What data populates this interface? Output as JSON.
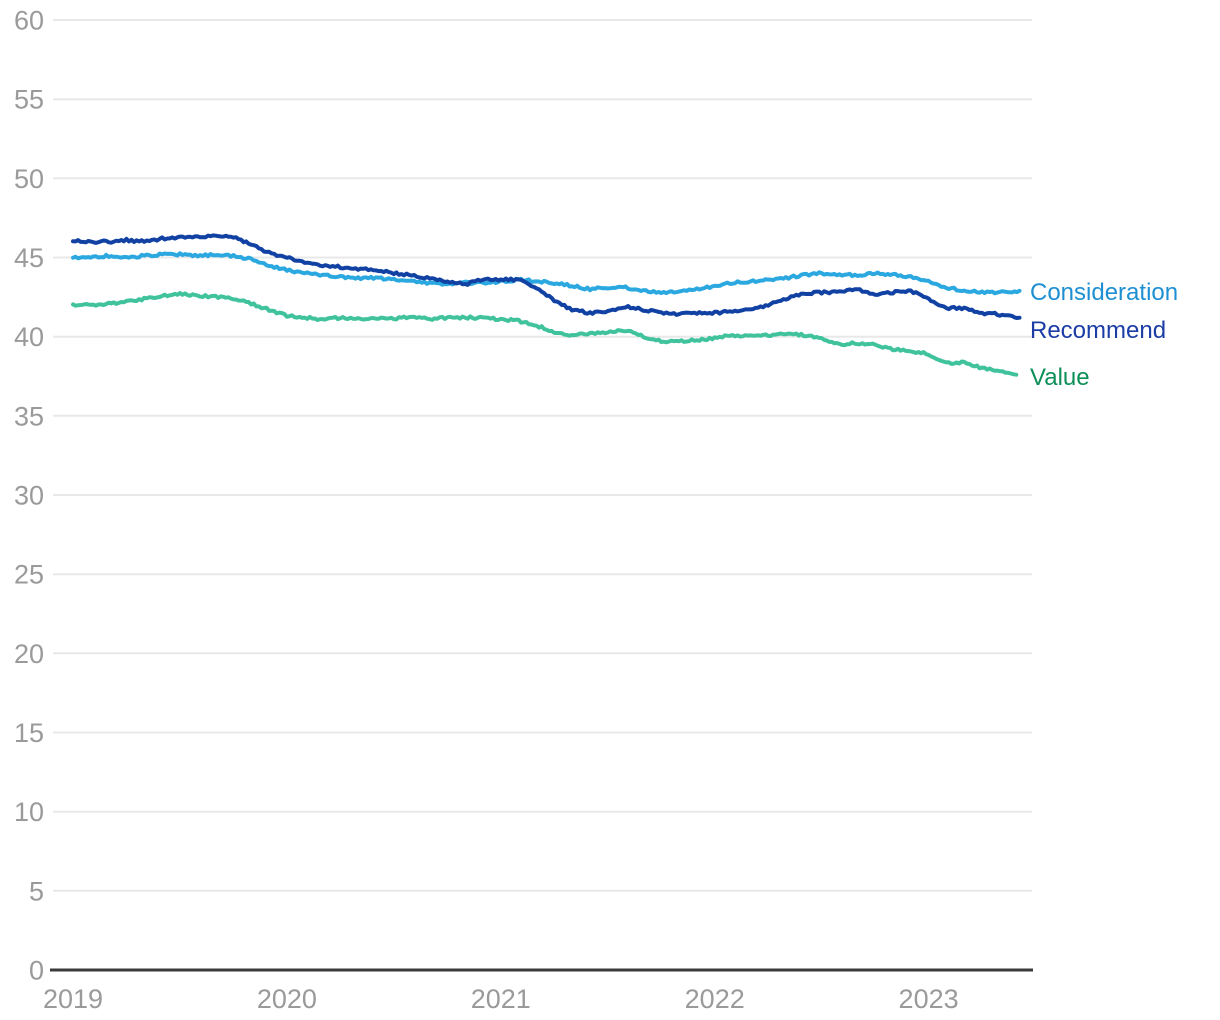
{
  "colors": {
    "axis_line": "#3a3a3a",
    "grid_line": "#e8e8e8",
    "tick_label": "#9a9a9a"
  },
  "chart_data": {
    "type": "line",
    "title": "",
    "xlabel": "",
    "ylabel": "",
    "ylim": [
      0,
      60
    ],
    "xlim": [
      2019.0,
      2023.45
    ],
    "grid": "horizontal",
    "legend_position": "right-of-line-ends",
    "yticks": [
      0,
      5,
      10,
      15,
      20,
      25,
      30,
      35,
      40,
      45,
      50,
      55,
      60
    ],
    "xticks": [
      2019,
      2020,
      2021,
      2022,
      2023
    ],
    "series": [
      {
        "name": "Consideration",
        "line_color": "#2ba8e0",
        "label_color": "#1e8fd2",
        "points": [
          [
            2019.0,
            45.0
          ],
          [
            2019.083,
            45.0
          ],
          [
            2019.167,
            45.1
          ],
          [
            2019.25,
            45.0
          ],
          [
            2019.333,
            45.1
          ],
          [
            2019.417,
            45.2
          ],
          [
            2019.5,
            45.2
          ],
          [
            2019.583,
            45.1
          ],
          [
            2019.667,
            45.2
          ],
          [
            2019.75,
            45.1
          ],
          [
            2019.833,
            44.9
          ],
          [
            2019.917,
            44.5
          ],
          [
            2020.0,
            44.2
          ],
          [
            2020.083,
            44.0
          ],
          [
            2020.167,
            43.9
          ],
          [
            2020.25,
            43.8
          ],
          [
            2020.333,
            43.7
          ],
          [
            2020.417,
            43.7
          ],
          [
            2020.5,
            43.6
          ],
          [
            2020.583,
            43.5
          ],
          [
            2020.667,
            43.4
          ],
          [
            2020.75,
            43.3
          ],
          [
            2020.833,
            43.4
          ],
          [
            2020.917,
            43.4
          ],
          [
            2021.0,
            43.5
          ],
          [
            2021.083,
            43.6
          ],
          [
            2021.167,
            43.5
          ],
          [
            2021.25,
            43.4
          ],
          [
            2021.333,
            43.2
          ],
          [
            2021.417,
            43.0
          ],
          [
            2021.5,
            43.1
          ],
          [
            2021.583,
            43.1
          ],
          [
            2021.667,
            42.9
          ],
          [
            2021.75,
            42.8
          ],
          [
            2021.833,
            42.8
          ],
          [
            2021.917,
            43.0
          ],
          [
            2022.0,
            43.2
          ],
          [
            2022.083,
            43.4
          ],
          [
            2022.167,
            43.5
          ],
          [
            2022.25,
            43.6
          ],
          [
            2022.333,
            43.7
          ],
          [
            2022.417,
            43.9
          ],
          [
            2022.5,
            44.0
          ],
          [
            2022.583,
            43.9
          ],
          [
            2022.667,
            43.9
          ],
          [
            2022.75,
            44.0
          ],
          [
            2022.833,
            43.9
          ],
          [
            2022.917,
            43.8
          ],
          [
            2023.0,
            43.5
          ],
          [
            2023.083,
            43.1
          ],
          [
            2023.167,
            42.9
          ],
          [
            2023.25,
            42.8
          ],
          [
            2023.333,
            42.8
          ],
          [
            2023.425,
            42.9
          ]
        ]
      },
      {
        "name": "Recommend",
        "line_color": "#1141a3",
        "label_color": "#1c3ca6",
        "points": [
          [
            2019.0,
            46.1
          ],
          [
            2019.083,
            46.0
          ],
          [
            2019.167,
            46.0
          ],
          [
            2019.25,
            46.1
          ],
          [
            2019.333,
            46.0
          ],
          [
            2019.417,
            46.2
          ],
          [
            2019.5,
            46.3
          ],
          [
            2019.583,
            46.3
          ],
          [
            2019.667,
            46.4
          ],
          [
            2019.75,
            46.3
          ],
          [
            2019.833,
            45.8
          ],
          [
            2019.917,
            45.3
          ],
          [
            2020.0,
            45.0
          ],
          [
            2020.083,
            44.7
          ],
          [
            2020.167,
            44.5
          ],
          [
            2020.25,
            44.4
          ],
          [
            2020.333,
            44.3
          ],
          [
            2020.417,
            44.2
          ],
          [
            2020.5,
            44.0
          ],
          [
            2020.583,
            43.9
          ],
          [
            2020.667,
            43.7
          ],
          [
            2020.75,
            43.5
          ],
          [
            2020.833,
            43.3
          ],
          [
            2020.917,
            43.6
          ],
          [
            2021.0,
            43.6
          ],
          [
            2021.083,
            43.6
          ],
          [
            2021.167,
            43.1
          ],
          [
            2021.25,
            42.3
          ],
          [
            2021.333,
            41.7
          ],
          [
            2021.417,
            41.5
          ],
          [
            2021.5,
            41.6
          ],
          [
            2021.583,
            41.9
          ],
          [
            2021.667,
            41.7
          ],
          [
            2021.75,
            41.5
          ],
          [
            2021.833,
            41.4
          ],
          [
            2021.917,
            41.5
          ],
          [
            2022.0,
            41.5
          ],
          [
            2022.083,
            41.6
          ],
          [
            2022.167,
            41.7
          ],
          [
            2022.25,
            42.0
          ],
          [
            2022.333,
            42.4
          ],
          [
            2022.417,
            42.7
          ],
          [
            2022.5,
            42.8
          ],
          [
            2022.583,
            42.8
          ],
          [
            2022.667,
            43.0
          ],
          [
            2022.75,
            42.6
          ],
          [
            2022.833,
            42.8
          ],
          [
            2022.917,
            42.9
          ],
          [
            2023.0,
            42.4
          ],
          [
            2023.083,
            41.8
          ],
          [
            2023.167,
            41.8
          ],
          [
            2023.25,
            41.5
          ],
          [
            2023.333,
            41.4
          ],
          [
            2023.425,
            41.2
          ]
        ]
      },
      {
        "name": "Value",
        "line_color": "#40c39d",
        "label_color": "#0d8f58",
        "points": [
          [
            2019.0,
            42.0
          ],
          [
            2019.083,
            42.0
          ],
          [
            2019.167,
            42.1
          ],
          [
            2019.25,
            42.2
          ],
          [
            2019.333,
            42.4
          ],
          [
            2019.417,
            42.6
          ],
          [
            2019.5,
            42.7
          ],
          [
            2019.583,
            42.6
          ],
          [
            2019.667,
            42.5
          ],
          [
            2019.75,
            42.4
          ],
          [
            2019.833,
            42.1
          ],
          [
            2019.917,
            41.7
          ],
          [
            2020.0,
            41.3
          ],
          [
            2020.083,
            41.2
          ],
          [
            2020.167,
            41.1
          ],
          [
            2020.25,
            41.2
          ],
          [
            2020.333,
            41.1
          ],
          [
            2020.417,
            41.2
          ],
          [
            2020.5,
            41.1
          ],
          [
            2020.583,
            41.3
          ],
          [
            2020.667,
            41.1
          ],
          [
            2020.75,
            41.2
          ],
          [
            2020.833,
            41.2
          ],
          [
            2020.917,
            41.2
          ],
          [
            2021.0,
            41.1
          ],
          [
            2021.083,
            41.0
          ],
          [
            2021.167,
            40.7
          ],
          [
            2021.25,
            40.3
          ],
          [
            2021.333,
            40.1
          ],
          [
            2021.417,
            40.2
          ],
          [
            2021.5,
            40.3
          ],
          [
            2021.583,
            40.4
          ],
          [
            2021.667,
            40.0
          ],
          [
            2021.75,
            39.7
          ],
          [
            2021.833,
            39.7
          ],
          [
            2021.917,
            39.8
          ],
          [
            2022.0,
            39.9
          ],
          [
            2022.083,
            40.1
          ],
          [
            2022.167,
            40.0
          ],
          [
            2022.25,
            40.1
          ],
          [
            2022.333,
            40.2
          ],
          [
            2022.417,
            40.1
          ],
          [
            2022.5,
            39.9
          ],
          [
            2022.583,
            39.5
          ],
          [
            2022.667,
            39.6
          ],
          [
            2022.75,
            39.5
          ],
          [
            2022.833,
            39.2
          ],
          [
            2022.917,
            39.1
          ],
          [
            2023.0,
            38.9
          ],
          [
            2023.083,
            38.3
          ],
          [
            2023.167,
            38.4
          ],
          [
            2023.25,
            38.0
          ],
          [
            2023.333,
            37.8
          ],
          [
            2023.41,
            37.6
          ]
        ]
      }
    ]
  }
}
